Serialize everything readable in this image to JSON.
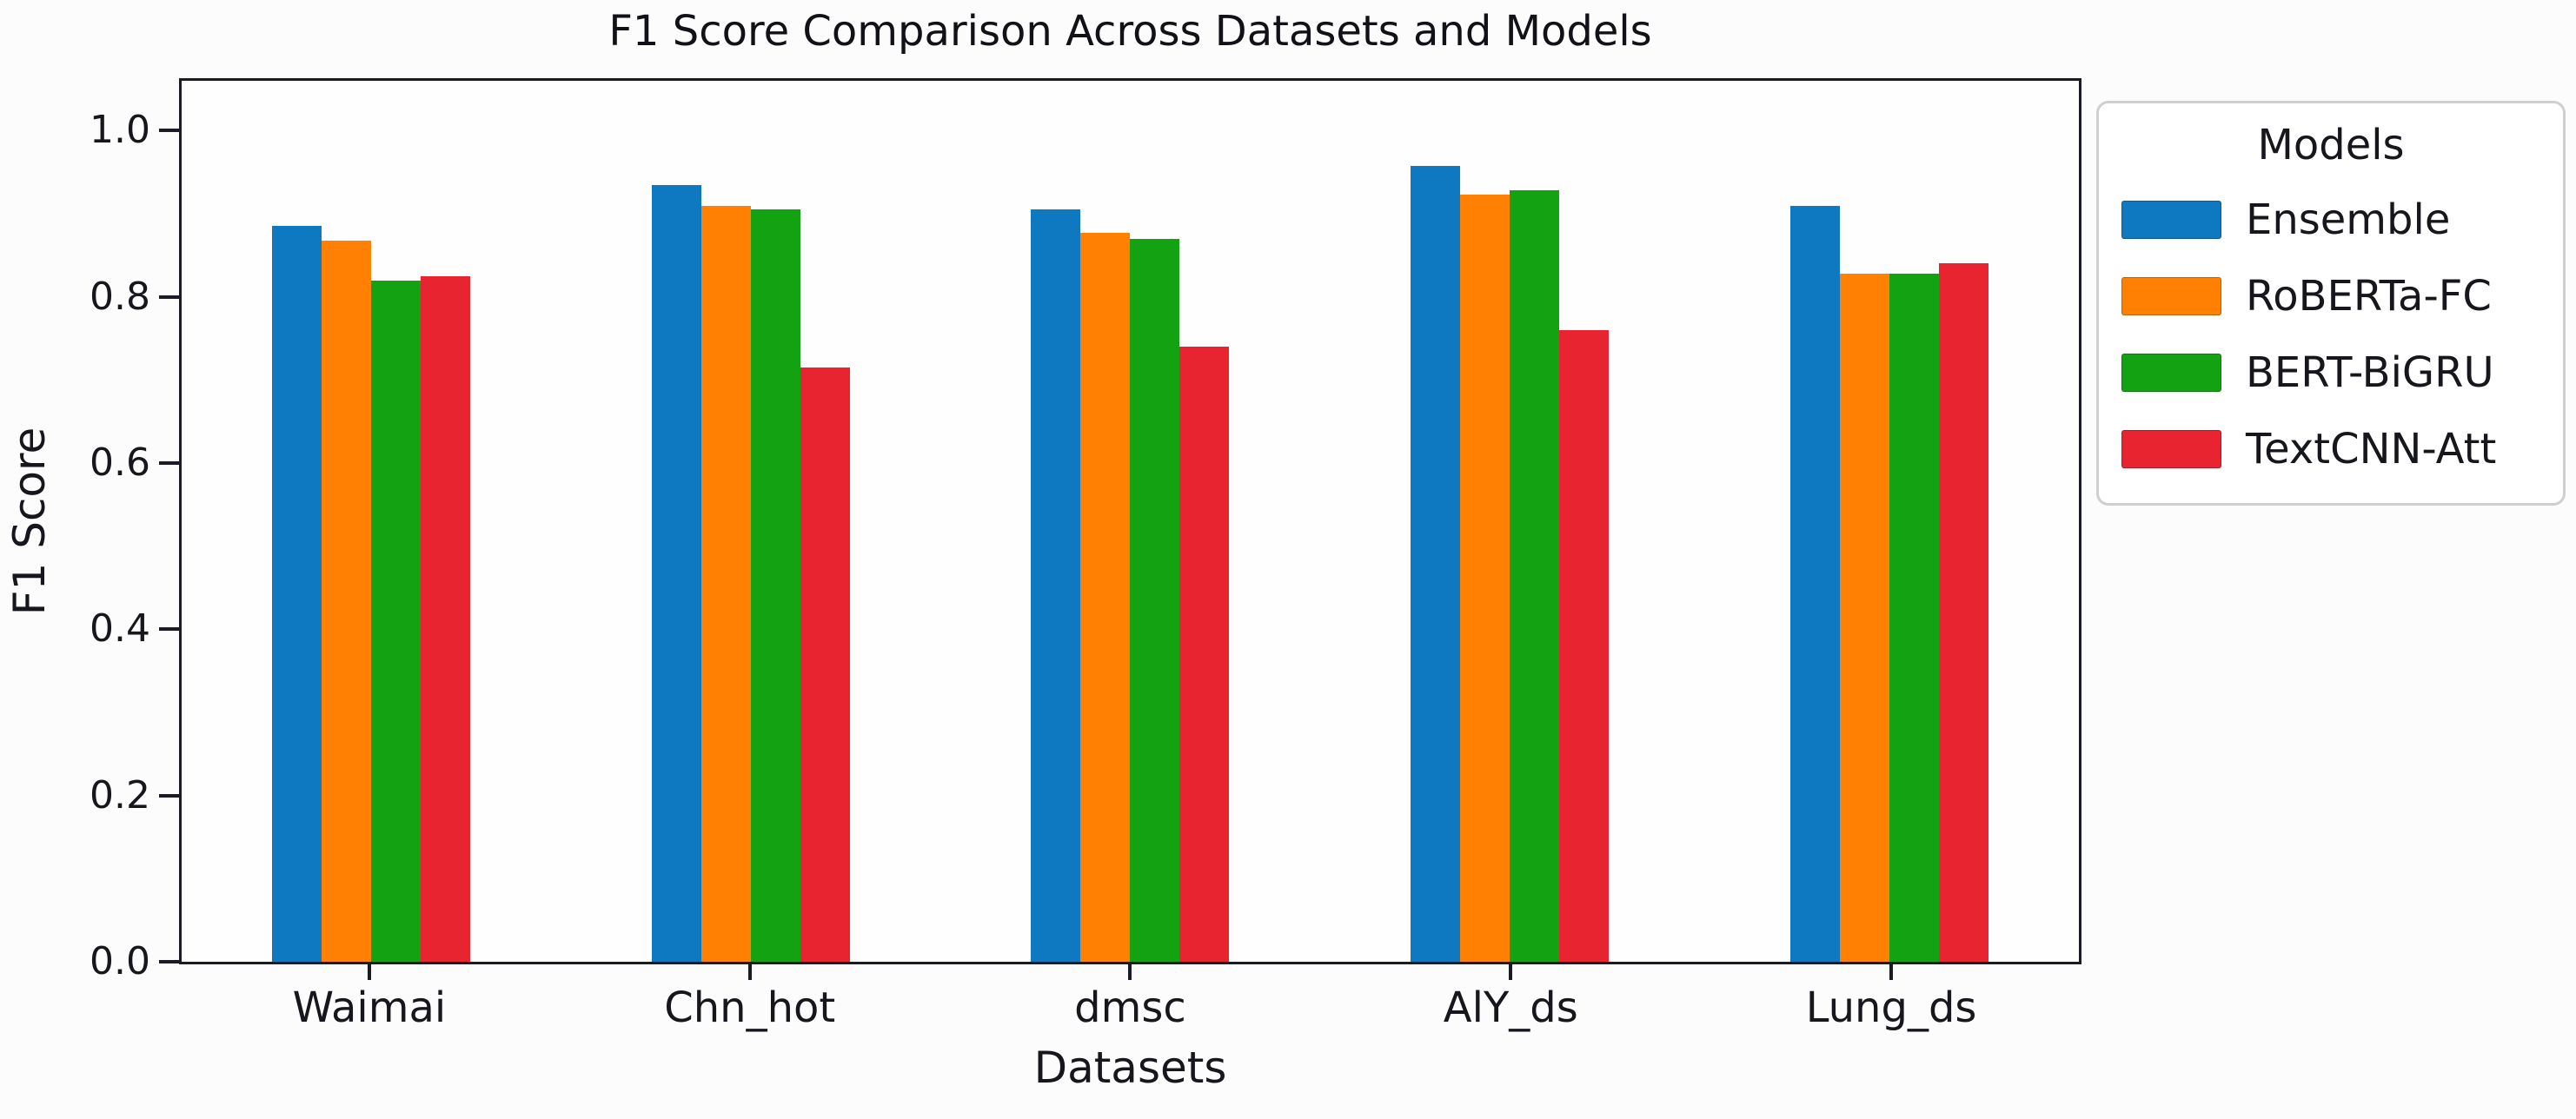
{
  "chart_data": {
    "type": "bar",
    "title": "F1 Score Comparison Across Datasets and Models",
    "xlabel": "Datasets",
    "ylabel": "F1 Score",
    "categories": [
      "Waimai",
      "Chn_hot",
      "dmsc",
      "AlY_ds",
      "Lung_ds"
    ],
    "series": [
      {
        "name": "Ensemble",
        "color": "#0e78c0",
        "values": [
          0.885,
          0.935,
          0.905,
          0.958,
          0.91
        ]
      },
      {
        "name": "RoBERTa-FC",
        "color": "#ff8003",
        "values": [
          0.868,
          0.91,
          0.877,
          0.923,
          0.828
        ]
      },
      {
        "name": "BERT-BiGRU",
        "color": "#12a212",
        "values": [
          0.82,
          0.905,
          0.87,
          0.928,
          0.828
        ]
      },
      {
        "name": "TextCNN-Att",
        "color": "#e72430",
        "values": [
          0.825,
          0.715,
          0.74,
          0.76,
          0.84
        ]
      }
    ],
    "legend_title": "Models",
    "legend_position": "upper right, outside plot",
    "ylim": [
      0,
      1.06
    ],
    "yticks": [
      0.0,
      0.2,
      0.4,
      0.6,
      0.8,
      1.0
    ],
    "grid": false,
    "axis_color": "#1b1b26"
  }
}
